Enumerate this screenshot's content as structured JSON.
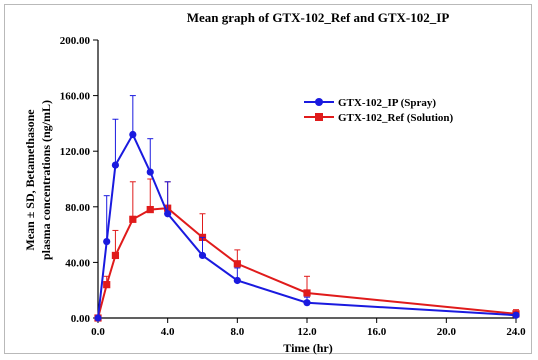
{
  "chart_data": {
    "type": "line",
    "title": "Mean graph of GTX-102_Ref and GTX-102_IP",
    "xlabel": "Time (hr)",
    "ylabel_lines": [
      "Mean ± SD, Betamethasone",
      "plasma concentrations (ng/mL)"
    ],
    "xlim": [
      0,
      24
    ],
    "ylim": [
      0,
      200
    ],
    "x_ticks": [
      "0.0",
      "4.0",
      "8.0",
      "12.0",
      "16.0",
      "20.0",
      "24.0"
    ],
    "y_ticks": [
      "0.00",
      "40.00",
      "80.00",
      "120.00",
      "160.00",
      "200.00"
    ],
    "legend_position": "upper-right",
    "series": [
      {
        "name": "GTX-102_IP (Spray)",
        "color": "#1a1adf",
        "marker": "circle",
        "x": [
          0,
          0.5,
          1,
          2,
          3,
          4,
          6,
          8,
          12,
          24
        ],
        "y": [
          0,
          55,
          110,
          132,
          105,
          75,
          45,
          27,
          11,
          2
        ],
        "sd": [
          0,
          33,
          33,
          28,
          24,
          23,
          13,
          9,
          4,
          1
        ]
      },
      {
        "name": "GTX-102_Ref (Solution)",
        "color": "#e01b1b",
        "marker": "square",
        "x": [
          0,
          0.5,
          1,
          2,
          3,
          4,
          6,
          8,
          12,
          24
        ],
        "y": [
          0,
          24,
          45,
          71,
          78,
          79,
          58,
          39,
          18,
          3
        ],
        "sd": [
          0,
          6,
          18,
          27,
          22,
          19,
          17,
          10,
          12,
          3
        ]
      }
    ]
  }
}
